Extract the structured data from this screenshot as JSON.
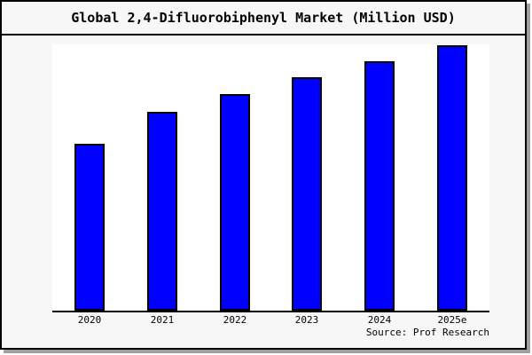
{
  "page": {
    "background": "#ffffff",
    "frame_background": "#f7f7f7",
    "frame_border_color": "#000000",
    "shadow_color": "#a0a0a0"
  },
  "header": {
    "title": "Global 2,4-Difluorobiphenyl Market (Million USD)"
  },
  "footer": {
    "source": "Source: Prof Research"
  },
  "chart_data": {
    "type": "bar",
    "title": "Global 2,4-Difluorobiphenyl Market (Million USD)",
    "categories": [
      "2020",
      "2021",
      "2022",
      "2023",
      "2024",
      "2025e"
    ],
    "values": [
      62.9,
      74.9,
      81.6,
      88.0,
      94.0,
      100.0
    ],
    "value_scale": "relative index, 2025e = 100 (no y-axis tick labels shown in chart)",
    "xlabel": "",
    "ylabel": "",
    "y_axis_visible": false,
    "gridlines": false,
    "legend_position": "none",
    "bar_color": "#0000ff",
    "bar_border_color": "#000000",
    "axis_color": "#000000",
    "plot_background": "#ffffff",
    "source": "Source: Prof Research"
  }
}
